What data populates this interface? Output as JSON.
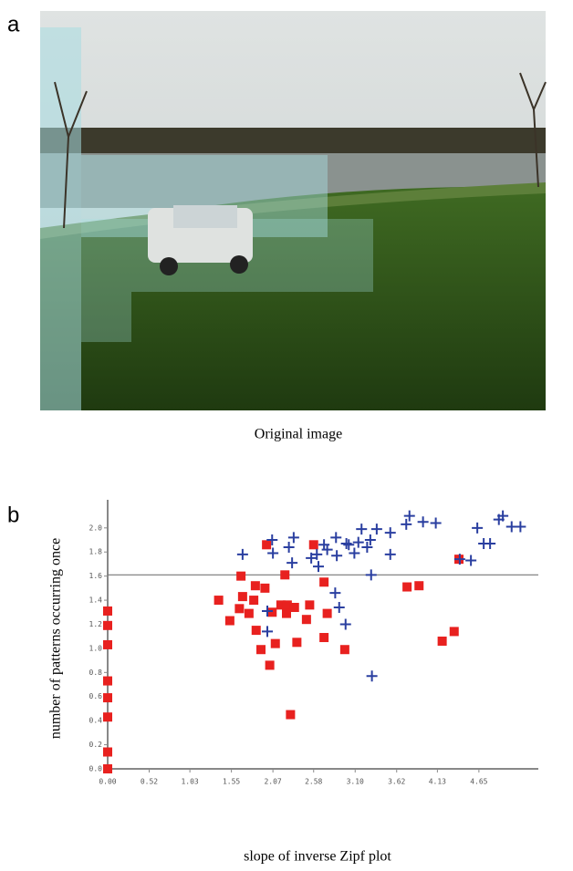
{
  "panels": [
    {
      "label": "a",
      "caption": "Original image"
    },
    {
      "label": "b"
    }
  ],
  "chart_data": {
    "type": "scatter",
    "xlabel": "slope of inverse Zipf plot",
    "ylabel": "number of patterns occurring once",
    "xlim": [
      0,
      5.2
    ],
    "ylim": [
      0,
      2.15
    ],
    "xticks": [
      {
        "value": 0,
        "label": "0.00"
      },
      0.52,
      1.03,
      1.55,
      2.07,
      2.58,
      {
        "value": 3.1,
        "label": "3.10"
      },
      3.62,
      4.13,
      4.65
    ],
    "yticks": [
      {
        "value": 0,
        "label": "0.0"
      },
      0.2,
      0.4,
      0.6,
      0.8,
      {
        "value": 1,
        "label": "1.0"
      },
      1.2,
      1.4,
      1.6,
      1.8,
      {
        "value": 2,
        "label": "2.0"
      }
    ],
    "threshold": 1.61,
    "series": [
      {
        "color": "#e8211f",
        "marker": "square",
        "x": [
          0,
          0,
          0,
          0,
          0,
          0,
          0,
          0,
          1.99,
          2.58,
          4.4,
          1.67,
          2.22,
          2.71,
          1.39,
          1.69,
          1.83,
          1.97,
          1.85,
          1.65,
          1.77,
          1.53,
          2.17,
          2.25,
          2.34,
          2.53,
          2.75,
          2.49,
          2.24,
          2.06,
          1.86,
          2.1,
          1.92,
          2.37,
          2.03,
          2.71,
          2.97,
          3.75,
          3.9,
          4.34,
          4.19,
          2.29
        ],
        "values": [
          1.31,
          1.19,
          1.03,
          0.73,
          0.59,
          0.43,
          0.14,
          0,
          1.86,
          1.86,
          1.74,
          1.6,
          1.61,
          1.55,
          1.4,
          1.43,
          1.4,
          1.5,
          1.52,
          1.33,
          1.29,
          1.23,
          1.36,
          1.36,
          1.34,
          1.36,
          1.29,
          1.24,
          1.29,
          1.3,
          1.15,
          1.04,
          0.99,
          1.05,
          0.86,
          1.09,
          0.99,
          1.51,
          1.52,
          1.14,
          1.06,
          0.45
        ]
      },
      {
        "color": "#2a3fa0",
        "marker": "plus",
        "x": [
          3.78,
          3.95,
          4.11,
          4.95,
          4.9,
          5.06,
          5.17,
          4.63,
          4.71,
          4.79,
          4.55,
          4.41,
          3.74,
          3.54,
          3.37,
          3.18,
          3.29,
          3.14,
          2.99,
          2.86,
          2.71,
          3.02,
          3.25,
          3.09,
          2.75,
          2.62,
          2.55,
          2.33,
          2.27,
          2.06,
          2.07,
          1.69,
          2.31,
          2.64,
          2.87,
          3.3,
          3.54,
          2.85,
          2.9,
          2.98,
          2.0,
          2.0,
          3.31
        ],
        "values": [
          2.1,
          2.05,
          2.04,
          2.1,
          2.07,
          2.01,
          2.01,
          2.0,
          1.87,
          1.87,
          1.73,
          1.74,
          2.03,
          1.96,
          1.99,
          1.99,
          1.9,
          1.88,
          1.87,
          1.92,
          1.86,
          1.86,
          1.84,
          1.79,
          1.82,
          1.78,
          1.75,
          1.92,
          1.84,
          1.9,
          1.79,
          1.78,
          1.71,
          1.68,
          1.77,
          1.61,
          1.78,
          1.46,
          1.34,
          1.2,
          1.31,
          1.14,
          0.77
        ]
      }
    ]
  }
}
